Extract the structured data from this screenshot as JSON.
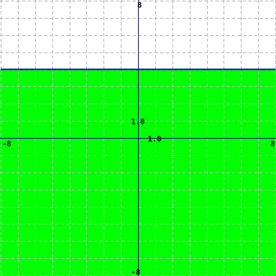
{
  "chart_data": {
    "type": "area",
    "title": "",
    "xlabel": "",
    "ylabel": "",
    "xlim": [
      -8,
      8
    ],
    "ylim": [
      -8,
      8
    ],
    "grid": true,
    "grid_step": 1,
    "series": [
      {
        "kind": "inequality",
        "relation": "y <= 4",
        "boundary": {
          "x": [
            -8,
            8
          ],
          "y": [
            4,
            4
          ]
        },
        "fill_from": -8,
        "fill_to": 4
      }
    ],
    "tick_labels": {
      "x_min": "-8",
      "x_max": "8",
      "y_min": "-8",
      "y_max": "8",
      "x_unit": "1.0",
      "y_unit": "1.0"
    },
    "colors": {
      "fill": "#00ff00",
      "boundary": "#0000cc",
      "axes": "#000080",
      "grid": "#b4b4b4",
      "background": "#ffffff"
    }
  }
}
